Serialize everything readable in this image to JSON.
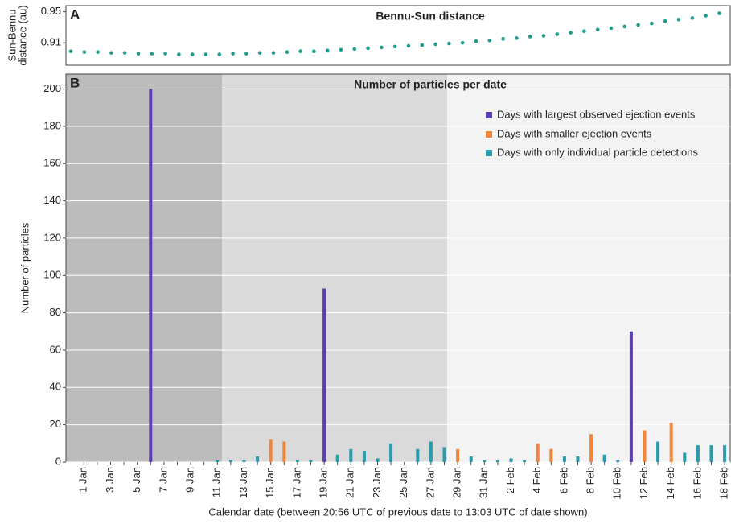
{
  "chart_data": [
    {
      "type": "dots",
      "panel_label": "A",
      "title": "Bennu-Sun distance",
      "ylabel": [
        "Sun-Bennu",
        "distance (au)"
      ],
      "color": "#1f9b8a",
      "ylim": [
        0.881,
        0.958
      ],
      "yticks": [
        0.91,
        0.95
      ],
      "grid": false,
      "values": [
        0.899,
        0.898,
        0.898,
        0.897,
        0.897,
        0.896,
        0.896,
        0.896,
        0.895,
        0.895,
        0.895,
        0.895,
        0.896,
        0.896,
        0.897,
        0.897,
        0.898,
        0.899,
        0.899,
        0.9,
        0.901,
        0.902,
        0.903,
        0.904,
        0.905,
        0.906,
        0.907,
        0.908,
        0.909,
        0.91,
        0.912,
        0.913,
        0.915,
        0.916,
        0.918,
        0.919,
        0.921,
        0.923,
        0.925,
        0.927,
        0.929,
        0.931,
        0.933,
        0.935,
        0.938,
        0.94,
        0.942,
        0.945,
        0.948
      ]
    },
    {
      "type": "bar",
      "panel_label": "B",
      "title": "Number of particles per date",
      "ylabel": "Number of particles",
      "xlabel": "Calendar date (between 20:56 UTC of previous date to 13:03 UTC of date shown)",
      "ylim": [
        0,
        208
      ],
      "yticks": [
        0,
        20,
        40,
        60,
        80,
        100,
        120,
        140,
        160,
        180,
        200
      ],
      "grid": true,
      "legend": "top-right",
      "categories": [
        "1 Jan",
        null,
        "3 Jan",
        null,
        "5 Jan",
        null,
        "7 Jan",
        null,
        "9 Jan",
        null,
        "11 Jan",
        null,
        "13 Jan",
        null,
        "15 Jan",
        null,
        "17 Jan",
        null,
        "19 Jan",
        null,
        "21 Jan",
        null,
        "23 Jan",
        null,
        "25 Jan",
        null,
        "27 Jan",
        null,
        "29 Jan",
        null,
        "31 Jan",
        null,
        "2 Feb",
        null,
        "4 Feb",
        null,
        "6 Feb",
        null,
        "8 Feb",
        null,
        "10 Feb",
        null,
        "12 Feb",
        null,
        "14 Feb",
        null,
        "16 Feb",
        null,
        "18 Feb"
      ],
      "series": [
        {
          "name": "Days with largest observed ejection events",
          "color": "#5b3fb0",
          "values": [
            null,
            null,
            null,
            null,
            null,
            200,
            null,
            null,
            null,
            null,
            null,
            null,
            null,
            null,
            null,
            null,
            null,
            null,
            93,
            null,
            null,
            null,
            null,
            null,
            null,
            null,
            null,
            null,
            null,
            null,
            null,
            null,
            null,
            null,
            null,
            null,
            null,
            null,
            null,
            null,
            null,
            70,
            null,
            null,
            null,
            null,
            null,
            null,
            null
          ]
        },
        {
          "name": "Days with smaller ejection events",
          "color": "#f0873a",
          "values": [
            null,
            null,
            null,
            null,
            null,
            null,
            null,
            null,
            null,
            null,
            null,
            null,
            null,
            null,
            12,
            11,
            null,
            null,
            null,
            null,
            null,
            null,
            null,
            null,
            null,
            null,
            null,
            null,
            7,
            null,
            null,
            null,
            null,
            null,
            10,
            7,
            null,
            null,
            15,
            null,
            null,
            null,
            17,
            null,
            21,
            null,
            null,
            null,
            null
          ]
        },
        {
          "name": "Days with only individual particle detections",
          "color": "#2b9bab",
          "values": [
            null,
            null,
            null,
            null,
            null,
            null,
            null,
            null,
            null,
            null,
            1,
            1,
            1,
            3,
            null,
            null,
            1,
            1,
            null,
            4,
            7,
            6,
            2,
            10,
            null,
            7,
            11,
            8,
            null,
            3,
            1,
            1,
            2,
            1,
            null,
            null,
            3,
            3,
            null,
            4,
            1,
            null,
            null,
            11,
            null,
            5,
            9,
            9,
            9
          ]
        }
      ]
    }
  ]
}
